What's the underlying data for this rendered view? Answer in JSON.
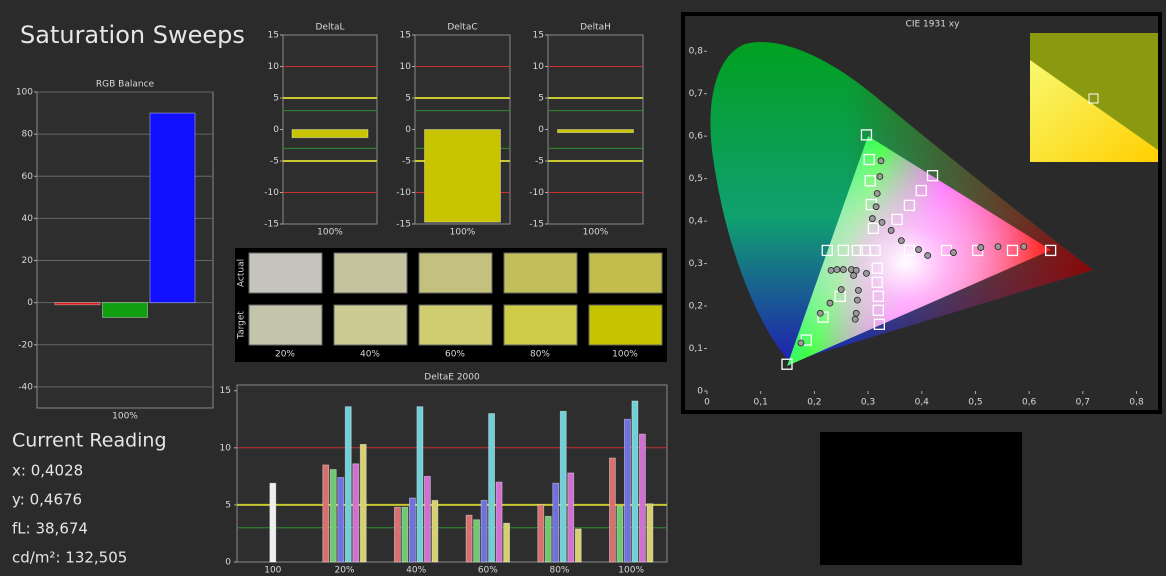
{
  "header": {
    "title": "Saturation Sweeps"
  },
  "current_reading": {
    "title": "Current Reading",
    "lines": [
      "x: 0,4028",
      "y: 0,4676",
      "fL: 38,674",
      "cd/m²: 132,505"
    ]
  },
  "swatches": {
    "row_labels": [
      "Actual",
      "Target"
    ],
    "columns": [
      "20%",
      "40%",
      "60%",
      "80%",
      "100%"
    ],
    "actual": [
      "#c4c4bc",
      "#c5c39e",
      "#c4c07e",
      "#c2be5c",
      "#c2bd4c"
    ],
    "target": [
      "#c4c4ad",
      "#cccb94",
      "#d0cd6e",
      "#cdcb48",
      "#c6c400"
    ]
  },
  "chart_data": [
    {
      "type": "bar",
      "title": "RGB Balance",
      "categories": [
        "100%"
      ],
      "series": [
        {
          "color": "#e01010",
          "values": [
            -1
          ]
        },
        {
          "color": "#10a010",
          "values": [
            -7
          ]
        },
        {
          "color": "#1010ff",
          "values": [
            90
          ]
        }
      ],
      "ylim": [
        -50,
        100
      ],
      "yticks": [
        -40,
        -20,
        0,
        20,
        40,
        60,
        80,
        100
      ],
      "grid": true
    },
    {
      "type": "bar",
      "title": "DeltaL",
      "categories": [
        "100%"
      ],
      "values": [
        -1.3
      ],
      "color": "#c8c400",
      "ylim": [
        -15,
        15
      ],
      "yticks": [
        -15,
        -10,
        -5,
        0,
        5,
        10,
        15
      ],
      "grid": false,
      "thresholds": [
        {
          "value": 10,
          "color": "#c83232"
        },
        {
          "value": -10,
          "color": "#c83232"
        },
        {
          "value": 5,
          "color": "#c8c832"
        },
        {
          "value": -5,
          "color": "#c8c832"
        },
        {
          "value": 3,
          "color": "#2e8b2e"
        },
        {
          "value": -3,
          "color": "#2e8b2e"
        }
      ]
    },
    {
      "type": "bar",
      "title": "DeltaC",
      "categories": [
        "100%"
      ],
      "values": [
        -14.7
      ],
      "color": "#c8c400",
      "ylim": [
        -15,
        15
      ],
      "yticks": [
        -15,
        -10,
        -5,
        0,
        5,
        10,
        15
      ],
      "grid": false,
      "thresholds": [
        {
          "value": 10,
          "color": "#c83232"
        },
        {
          "value": -10,
          "color": "#c83232"
        },
        {
          "value": 5,
          "color": "#c8c832"
        },
        {
          "value": -5,
          "color": "#c8c832"
        },
        {
          "value": 3,
          "color": "#2e8b2e"
        },
        {
          "value": -3,
          "color": "#2e8b2e"
        }
      ]
    },
    {
      "type": "bar",
      "title": "DeltaH",
      "categories": [
        "100%"
      ],
      "values": [
        -0.5
      ],
      "color": "#c8c400",
      "ylim": [
        -15,
        15
      ],
      "yticks": [
        -15,
        -10,
        -5,
        0,
        5,
        10,
        15
      ],
      "grid": false,
      "thresholds": [
        {
          "value": 10,
          "color": "#c83232"
        },
        {
          "value": -10,
          "color": "#c83232"
        },
        {
          "value": 5,
          "color": "#c8c832"
        },
        {
          "value": -5,
          "color": "#c8c832"
        },
        {
          "value": 3,
          "color": "#2e8b2e"
        },
        {
          "value": -3,
          "color": "#2e8b2e"
        }
      ]
    },
    {
      "type": "bar",
      "title": "DeltaE 2000",
      "categories": [
        "100",
        "20%",
        "40%",
        "60%",
        "80%",
        "100%"
      ],
      "series": [
        {
          "color": "#eeeeee",
          "values": [
            6.9,
            null,
            null,
            null,
            null,
            null
          ]
        },
        {
          "color": "#d87070",
          "values": [
            null,
            8.5,
            4.8,
            4.1,
            5.0,
            9.1
          ]
        },
        {
          "color": "#70c870",
          "values": [
            null,
            8.1,
            4.8,
            3.7,
            4.0,
            4.9
          ]
        },
        {
          "color": "#7070e0",
          "values": [
            null,
            7.4,
            5.6,
            5.4,
            6.9,
            12.5
          ]
        },
        {
          "color": "#70d0d8",
          "values": [
            null,
            13.6,
            13.6,
            13.0,
            13.2,
            14.1
          ]
        },
        {
          "color": "#d070d0",
          "values": [
            null,
            8.6,
            7.5,
            7.0,
            7.8,
            11.2
          ]
        },
        {
          "color": "#d8d070",
          "values": [
            null,
            10.3,
            5.4,
            3.4,
            2.9,
            5.1
          ]
        }
      ],
      "ylim": [
        0,
        15.5
      ],
      "yticks": [
        0,
        5,
        10,
        15
      ],
      "grid": false,
      "thresholds": [
        {
          "value": 10,
          "color": "#c83232"
        },
        {
          "value": 5,
          "color": "#c8c832"
        },
        {
          "value": 3,
          "color": "#2e8b2e"
        }
      ]
    },
    {
      "type": "scatter",
      "title": "CIE 1931 xy",
      "series": [
        {
          "marker": "square",
          "color": "#ffffff",
          "x": [
            0.297,
            0.302,
            0.304,
            0.306,
            0.31,
            0.313,
            0.377,
            0.446,
            0.504,
            0.569,
            0.64,
            0.224,
            0.254,
            0.28,
            0.295,
            0.354,
            0.377,
            0.399,
            0.42,
            0.248,
            0.216,
            0.185,
            0.149,
            0.317,
            0.317,
            0.319,
            0.319,
            0.321
          ],
          "y": [
            0.603,
            0.545,
            0.495,
            0.439,
            0.383,
            0.331,
            0.331,
            0.331,
            0.331,
            0.331,
            0.331,
            0.331,
            0.331,
            0.331,
            0.331,
            0.404,
            0.437,
            0.472,
            0.507,
            0.223,
            0.174,
            0.12,
            0.063,
            0.289,
            0.256,
            0.223,
            0.19,
            0.157
          ]
        },
        {
          "marker": "circle",
          "color": "#9a9a9a",
          "x": [
            0.324,
            0.322,
            0.317,
            0.315,
            0.308,
            0.394,
            0.411,
            0.459,
            0.51,
            0.542,
            0.59,
            0.326,
            0.343,
            0.362,
            0.231,
            0.242,
            0.254,
            0.269,
            0.278,
            0.175,
            0.211,
            0.229,
            0.25,
            0.273,
            0.276,
            0.278,
            0.28,
            0.282,
            0.297
          ],
          "y": [
            0.542,
            0.505,
            0.465,
            0.434,
            0.406,
            0.333,
            0.319,
            0.326,
            0.338,
            0.34,
            0.34,
            0.397,
            0.378,
            0.354,
            0.284,
            0.286,
            0.286,
            0.286,
            0.284,
            0.113,
            0.183,
            0.207,
            0.239,
            0.272,
            0.169,
            0.183,
            0.214,
            0.237,
            0.277
          ]
        }
      ],
      "xlim": [
        0,
        0.84
      ],
      "ylim": [
        0,
        0.85
      ],
      "xticks": [
        0,
        {
          "value": 0.1,
          "label": "0,1"
        },
        {
          "value": 0.2,
          "label": "0,2"
        },
        {
          "value": 0.3,
          "label": "0,3"
        },
        {
          "value": 0.4,
          "label": "0,4"
        },
        {
          "value": 0.5,
          "label": "0,5"
        },
        {
          "value": 0.6,
          "label": "0,6"
        },
        {
          "value": 0.7,
          "label": "0,7"
        },
        {
          "value": 0.8,
          "label": "0,8"
        }
      ],
      "yticks": [
        0,
        {
          "value": 0.1,
          "label": "0,1"
        },
        {
          "value": 0.2,
          "label": "0,2"
        },
        {
          "value": 0.3,
          "label": "0,3"
        },
        {
          "value": 0.4,
          "label": "0,4"
        },
        {
          "value": 0.5,
          "label": "0,5"
        },
        {
          "value": 0.6,
          "label": "0,6"
        },
        {
          "value": 0.7,
          "label": "0,7"
        },
        {
          "value": 0.8,
          "label": "0,8"
        }
      ]
    }
  ]
}
